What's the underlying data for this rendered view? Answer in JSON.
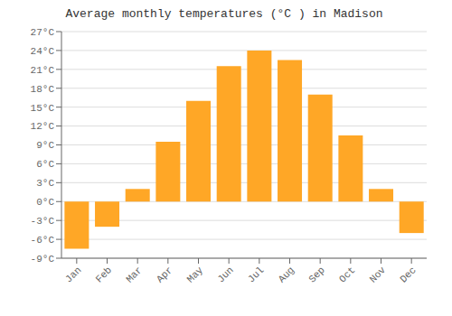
{
  "chart_data": {
    "type": "bar",
    "title": "Average monthly temperatures (°C ) in Madison",
    "categories": [
      "Jan",
      "Feb",
      "Mar",
      "Apr",
      "May",
      "Jun",
      "Jul",
      "Aug",
      "Sep",
      "Oct",
      "Nov",
      "Dec"
    ],
    "values": [
      -7.5,
      -4.0,
      2.0,
      9.5,
      16.0,
      21.5,
      24.0,
      22.5,
      17.0,
      10.5,
      2.0,
      -5.0
    ],
    "color": "#FFA726",
    "ylim": [
      -9,
      27
    ],
    "yticks": [
      {
        "value": -9,
        "label": "-9°C"
      },
      {
        "value": -6,
        "label": "-6°C"
      },
      {
        "value": -3,
        "label": "-3°C"
      },
      {
        "value": 0,
        "label": "0°C"
      },
      {
        "value": 3,
        "label": "3°C"
      },
      {
        "value": 6,
        "label": "6°C"
      },
      {
        "value": 9,
        "label": "9°C"
      },
      {
        "value": 12,
        "label": "12°C"
      },
      {
        "value": 15,
        "label": "15°C"
      },
      {
        "value": 18,
        "label": "18°C"
      },
      {
        "value": 21,
        "label": "21°C"
      },
      {
        "value": 24,
        "label": "24°C"
      },
      {
        "value": 27,
        "label": "27°C"
      }
    ],
    "grid": true
  }
}
